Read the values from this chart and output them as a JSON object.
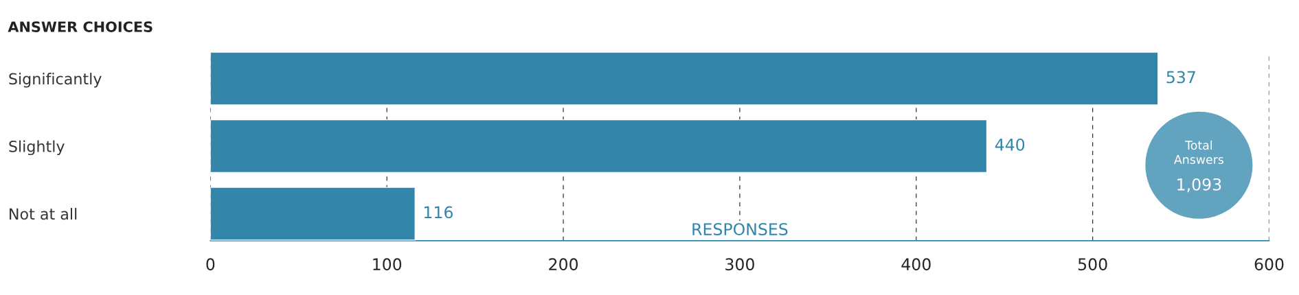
{
  "chart_data": {
    "type": "bar",
    "orientation": "horizontal",
    "title": "ANSWER CHOICES",
    "xlabel": "RESPONSES",
    "categories": [
      "Significantly",
      "Slightly",
      "Not at all"
    ],
    "values": [
      537,
      440,
      116
    ],
    "color": "#3385aa",
    "xlim": [
      0,
      600
    ],
    "xticks": [
      0,
      100,
      200,
      300,
      400,
      500,
      600
    ],
    "grid": "x",
    "data_labels": true,
    "annotations": [
      "Total Answers",
      "1,093"
    ]
  }
}
